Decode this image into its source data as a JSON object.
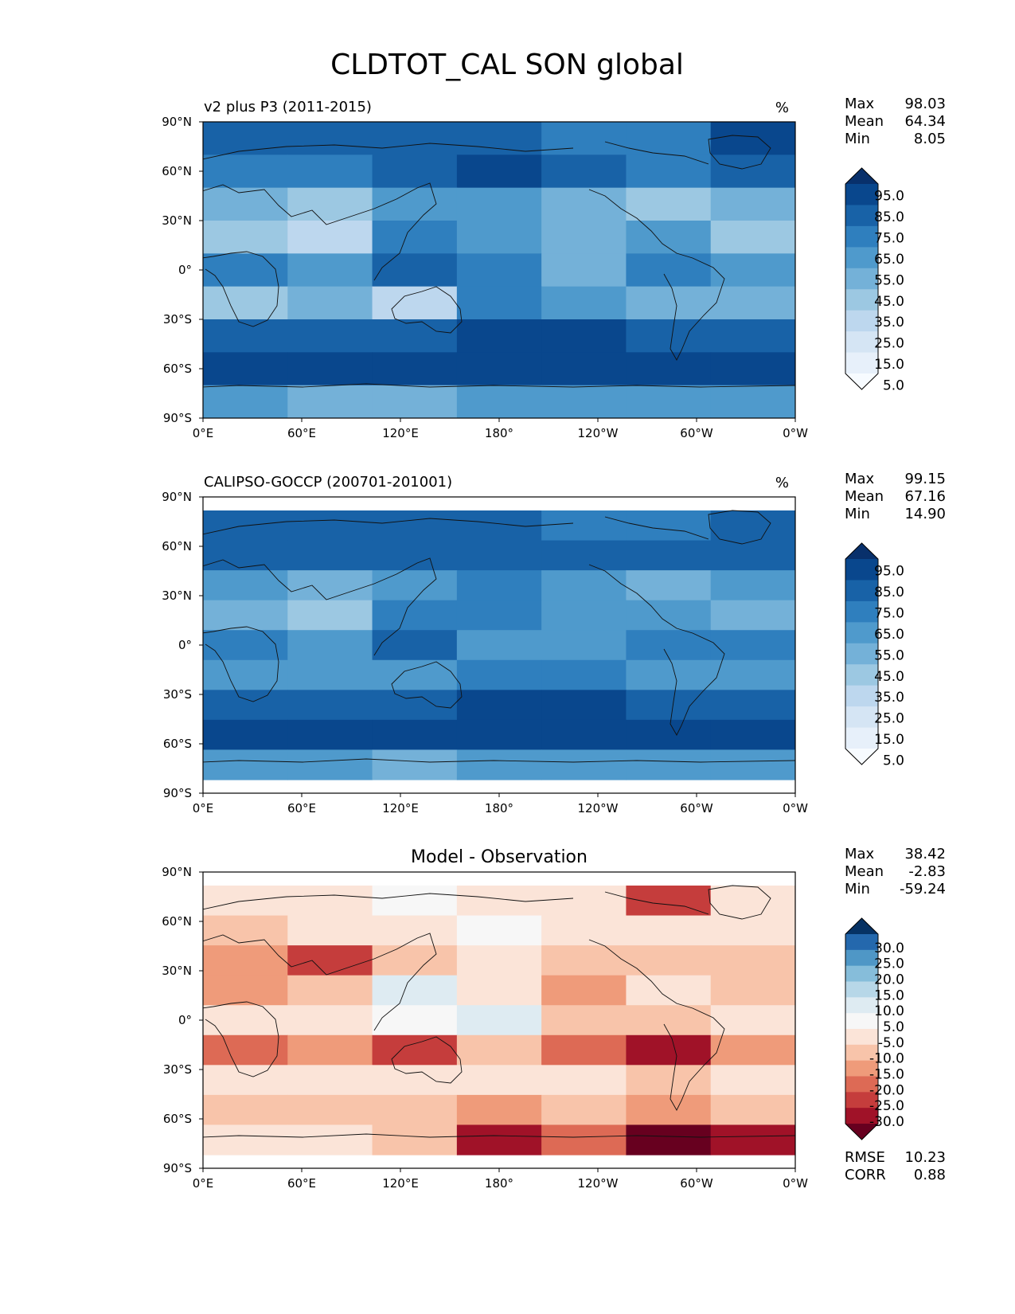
{
  "chart_data": {
    "type": "heatmap",
    "title": "CLDTOT_CAL SON global",
    "panels": [
      {
        "id": "test",
        "title": "v2 plus P3 (2011-2015)",
        "units": "%",
        "stats": {
          "max_label": "Max",
          "max": "98.03",
          "mean_label": "Mean",
          "mean": "64.34",
          "min_label": "Min",
          "min": "8.05"
        },
        "colorbar": {
          "ticks": [
            "95.0",
            "85.0",
            "75.0",
            "65.0",
            "55.0",
            "45.0",
            "35.0",
            "25.0",
            "15.0",
            "5.0"
          ],
          "colors": [
            "#f7fbff",
            "#e7f0fa",
            "#d5e5f4",
            "#bdd7ee",
            "#9cc8e2",
            "#74b1d8",
            "#4f9acc",
            "#2f7fbe",
            "#1862a7",
            "#09478d",
            "#08306b"
          ]
        },
        "field": {
          "lat": [
            80,
            60,
            40,
            20,
            0,
            -20,
            -40,
            -60,
            -80
          ],
          "lon": [
            "0E",
            "60E",
            "120E",
            "180",
            "120W",
            "60W",
            "0W"
          ],
          "values": [
            [
              80,
              78,
              82,
              84,
              72,
              70,
              86
            ],
            [
              74,
              70,
              82,
              88,
              80,
              72,
              82
            ],
            [
              48,
              40,
              58,
              64,
              50,
              44,
              52
            ],
            [
              38,
              30,
              70,
              62,
              46,
              58,
              40
            ],
            [
              72,
              58,
              84,
              70,
              50,
              66,
              62
            ],
            [
              38,
              54,
              32,
              70,
              58,
              46,
              54
            ],
            [
              80,
              82,
              84,
              86,
              88,
              80,
              82
            ],
            [
              88,
              90,
              92,
              94,
              92,
              88,
              90
            ],
            [
              58,
              54,
              52,
              56,
              60,
              62,
              56
            ]
          ]
        }
      },
      {
        "id": "ref",
        "title": "CALIPSO-GOCCP (200701-201001)",
        "units": "%",
        "stats": {
          "max_label": "Max",
          "max": "99.15",
          "mean_label": "Mean",
          "mean": "67.16",
          "min_label": "Min",
          "min": "14.90"
        },
        "colorbar": {
          "ticks": [
            "95.0",
            "85.0",
            "75.0",
            "65.0",
            "55.0",
            "45.0",
            "35.0",
            "25.0",
            "15.0",
            "5.0"
          ],
          "colors": [
            "#f7fbff",
            "#e7f0fa",
            "#d5e5f4",
            "#bdd7ee",
            "#9cc8e2",
            "#74b1d8",
            "#4f9acc",
            "#2f7fbe",
            "#1862a7",
            "#09478d",
            "#08306b"
          ]
        },
        "field": {
          "lat": [
            80,
            60,
            40,
            20,
            0,
            -20,
            -40,
            -60,
            -80
          ],
          "lon": [
            "0E",
            "60E",
            "120E",
            "180",
            "120W",
            "60W",
            "0W"
          ],
          "values": [
            [
              78,
              76,
              78,
              80,
              74,
              72,
              82
            ],
            [
              80,
              76,
              80,
              84,
              80,
              76,
              80
            ],
            [
              60,
              46,
              64,
              68,
              56,
              52,
              58
            ],
            [
              52,
              40,
              68,
              66,
              58,
              62,
              50
            ],
            [
              72,
              62,
              80,
              62,
              60,
              72,
              66
            ],
            [
              60,
              64,
              58,
              72,
              66,
              58,
              64
            ],
            [
              82,
              84,
              84,
              86,
              86,
              82,
              84
            ],
            [
              88,
              90,
              90,
              92,
              90,
              88,
              90
            ],
            [
              58,
              56,
              54,
              56,
              58,
              60,
              56
            ]
          ]
        }
      },
      {
        "id": "diff",
        "title": "Model - Observation",
        "units": "",
        "stats": {
          "max_label": "Max",
          "max": "38.42",
          "mean_label": "Mean",
          "mean": "-2.83",
          "min_label": "Min",
          "min": "-59.24"
        },
        "extra_stats": {
          "rmse_label": "RMSE",
          "rmse": "10.23",
          "corr_label": "CORR",
          "corr": "0.88"
        },
        "colorbar": {
          "ticks": [
            "30.0",
            "25.0",
            "20.0",
            "15.0",
            "10.0",
            "5.0",
            "-5.0",
            "-10.0",
            "-15.0",
            "-20.0",
            "-25.0",
            "-30.0"
          ],
          "colors": [
            "#67001f",
            "#a01228",
            "#c53d3c",
            "#dd6a55",
            "#ef9b7a",
            "#f8c4aa",
            "#fbe4d8",
            "#f7f7f7",
            "#deebf2",
            "#b7d7e8",
            "#86bdda",
            "#4f97c6",
            "#2468ad",
            "#063264"
          ]
        },
        "field": {
          "lat": [
            80,
            60,
            40,
            20,
            0,
            -20,
            -40,
            -60,
            -80
          ],
          "lon": [
            "0E",
            "60E",
            "120E",
            "180",
            "120W",
            "60W",
            "0W"
          ],
          "values": [
            [
              2,
              4,
              6,
              4,
              -2,
              -22,
              4
            ],
            [
              -6,
              -4,
              4,
              6,
              2,
              -4,
              2
            ],
            [
              -14,
              -24,
              -8,
              -4,
              -6,
              -8,
              -6
            ],
            [
              -12,
              -6,
              10,
              -4,
              -14,
              -4,
              -10
            ],
            [
              2,
              -4,
              8,
              10,
              -8,
              -6,
              -4
            ],
            [
              -20,
              -12,
              -24,
              -6,
              -16,
              -26,
              -12
            ],
            [
              -4,
              -2,
              0,
              2,
              -2,
              -6,
              -2
            ],
            [
              -6,
              -10,
              -8,
              -12,
              -10,
              -14,
              -10
            ],
            [
              -2,
              4,
              -8,
              -30,
              -20,
              -36,
              -28
            ]
          ]
        }
      }
    ],
    "xaxis": {
      "ticks": [
        "0°E",
        "60°E",
        "120°E",
        "180°",
        "120°W",
        "60°W",
        "0°W"
      ],
      "range": [
        0,
        360
      ]
    },
    "yaxis": {
      "ticks": [
        "90°N",
        "60°N",
        "30°N",
        "0°",
        "30°S",
        "60°S",
        "90°S"
      ],
      "range": [
        90,
        -90
      ]
    }
  }
}
